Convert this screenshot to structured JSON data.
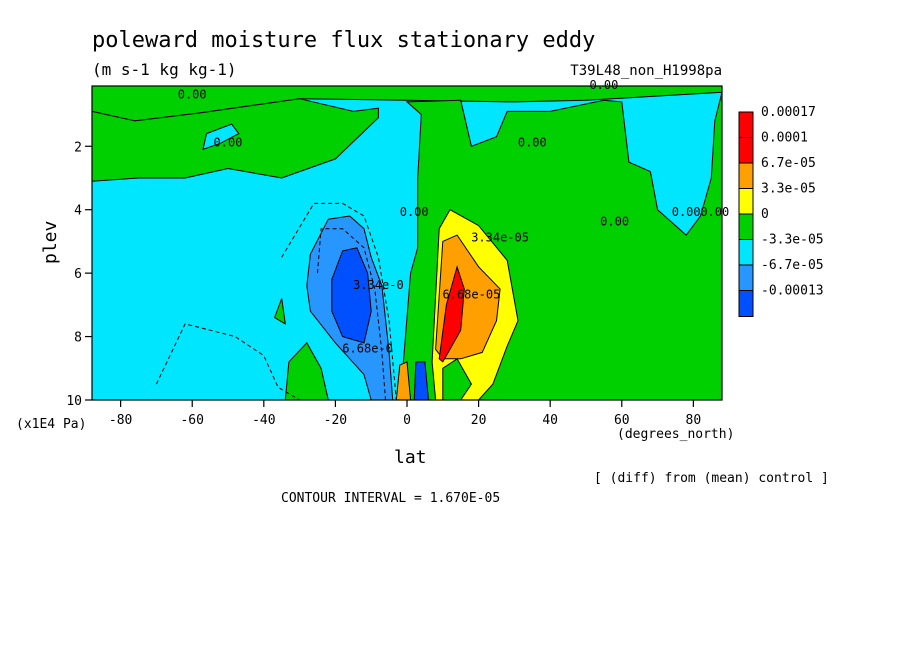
{
  "chart_data": {
    "type": "heatmap",
    "title": "poleward moisture flux stationary eddy",
    "subtitle": "(m s-1 kg kg-1)",
    "run_label": "T39L48_non_H1998pa",
    "xlabel": "lat",
    "x_units": "(degrees_north)",
    "ylabel": "plev",
    "y_units": "(x1E4 Pa)",
    "xlim": [
      -88,
      88
    ],
    "ylim": [
      10,
      0.1
    ],
    "x_ticks": [
      -80,
      -60,
      -40,
      -20,
      0,
      20,
      40,
      60,
      80
    ],
    "x_tick_labels": [
      "-80",
      "-60",
      "-40",
      "-20",
      "0",
      "20",
      "40",
      "60",
      "80"
    ],
    "y_ticks": [
      2,
      4,
      6,
      8,
      10
    ],
    "y_tick_labels": [
      "2",
      "4",
      "6",
      "8",
      "10"
    ],
    "note": "[ (diff) from (mean) control ]",
    "contour_interval": "CONTOUR INTERVAL = 1.670E-05",
    "legend": {
      "placement": "right",
      "labels": [
        "0.00017",
        "0.0001",
        "6.7e-05",
        "3.3e-05",
        "0",
        "-3.3e-05",
        "-6.7e-05",
        "-0.00013"
      ],
      "colors": [
        "#ff0000",
        "#ff0000",
        "#ffa000",
        "#ffff00",
        "#00d000",
        "#00e6ff",
        "#2896ff",
        "#0050ff"
      ]
    },
    "contour_labels": [
      {
        "text": "0.00",
        "lat": -60,
        "plev": 0.5
      },
      {
        "text": "0.00",
        "lat": 55,
        "plev": 0.2
      },
      {
        "text": "0.00",
        "lat": -50,
        "plev": 2.0
      },
      {
        "text": "0.00",
        "lat": 35,
        "plev": 2.0
      },
      {
        "text": "0.00",
        "lat": 2,
        "plev": 4.2
      },
      {
        "text": "0.00",
        "lat": 58,
        "plev": 4.5
      },
      {
        "text": "0.00",
        "lat": 78,
        "plev": 4.2
      },
      {
        "text": "0.00",
        "lat": 95,
        "plev": 4.2
      },
      {
        "text": "3.34e-05",
        "lat": 26,
        "plev": 5.0
      },
      {
        "text": "6.68e-05",
        "lat": 18,
        "plev": 6.8
      },
      {
        "text": "3.34e-0",
        "lat": -8,
        "plev": 6.5
      },
      {
        "text": "6.68e-0",
        "lat": -11,
        "plev": 8.5
      }
    ]
  }
}
